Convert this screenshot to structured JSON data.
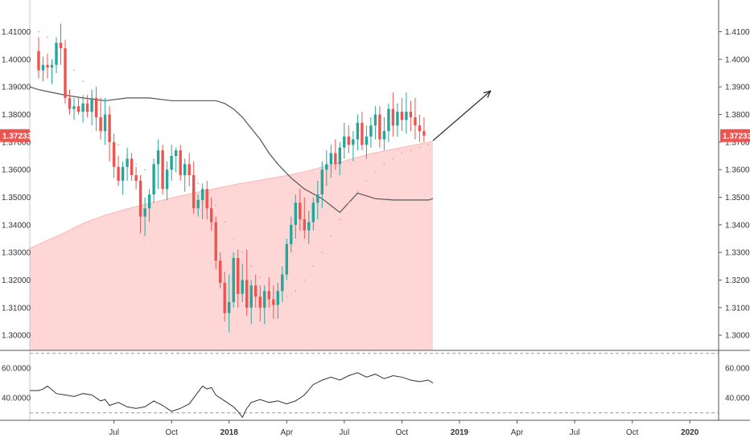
{
  "colors": {
    "up": "#26a69a",
    "down": "#ef5350",
    "fill": "#ffd6d6",
    "fill_edge": "#ffb3b3",
    "ma": "#555555",
    "psar": "#ef9a9a",
    "osc": "#333333",
    "grid_dash": "#999999",
    "axis": "#555555"
  },
  "chart_data": {
    "type": "candlestick",
    "price_axis": {
      "ticks": [
        1.3,
        1.31,
        1.32,
        1.33,
        1.34,
        1.35,
        1.36,
        1.37,
        1.38,
        1.39,
        1.4,
        1.41
      ],
      "tick_labels": [
        "1.30000",
        "1.31000",
        "1.32000",
        "1.33000",
        "1.34000",
        "1.35000",
        "1.36000",
        "1.37000",
        "1.38000",
        "1.39000",
        "1.40000",
        "1.41000"
      ],
      "range": [
        1.2945,
        1.4215
      ],
      "last_price": 1.37233,
      "last_price_label": "1.37233"
    },
    "time_axis": {
      "labels": [
        {
          "text": "Jul",
          "bold": false,
          "week": 17
        },
        {
          "text": "Oct",
          "bold": false,
          "week": 30
        },
        {
          "text": "2018",
          "bold": true,
          "week": 43
        },
        {
          "text": "Apr",
          "bold": false,
          "week": 56
        },
        {
          "text": "Jul",
          "bold": false,
          "week": 69
        },
        {
          "text": "Oct",
          "bold": false,
          "week": 82
        },
        {
          "text": "2019",
          "bold": true,
          "week": 95
        },
        {
          "text": "Apr",
          "bold": false,
          "week": 108
        },
        {
          "text": "Jul",
          "bold": false,
          "week": 121
        },
        {
          "text": "Oct",
          "bold": false,
          "week": 134
        },
        {
          "text": "2020",
          "bold": true,
          "week": 147
        }
      ],
      "week_range": [
        -2,
        153.5
      ]
    },
    "candles": [
      [
        1.403,
        1.408,
        1.393,
        1.396
      ],
      [
        1.396,
        1.401,
        1.392,
        1.398
      ],
      [
        1.398,
        1.402,
        1.393,
        1.397
      ],
      [
        1.397,
        1.4,
        1.391,
        1.398
      ],
      [
        1.398,
        1.408,
        1.395,
        1.406
      ],
      [
        1.406,
        1.413,
        1.398,
        1.404
      ],
      [
        1.404,
        1.407,
        1.384,
        1.386
      ],
      [
        1.386,
        1.389,
        1.38,
        1.382
      ],
      [
        1.382,
        1.386,
        1.378,
        1.383
      ],
      [
        1.383,
        1.386,
        1.38,
        1.381
      ],
      [
        1.381,
        1.387,
        1.377,
        1.384
      ],
      [
        1.384,
        1.387,
        1.379,
        1.381
      ],
      [
        1.381,
        1.389,
        1.376,
        1.386
      ],
      [
        1.386,
        1.39,
        1.374,
        1.379
      ],
      [
        1.379,
        1.386,
        1.371,
        1.374
      ],
      [
        1.374,
        1.386,
        1.369,
        1.38
      ],
      [
        1.38,
        1.383,
        1.363,
        1.37
      ],
      [
        1.37,
        1.373,
        1.357,
        1.361
      ],
      [
        1.361,
        1.365,
        1.354,
        1.356
      ],
      [
        1.356,
        1.363,
        1.351,
        1.361
      ],
      [
        1.361,
        1.368,
        1.356,
        1.364
      ],
      [
        1.364,
        1.366,
        1.356,
        1.358
      ],
      [
        1.358,
        1.361,
        1.353,
        1.356
      ],
      [
        1.356,
        1.358,
        1.337,
        1.343
      ],
      [
        1.343,
        1.35,
        1.336,
        1.346
      ],
      [
        1.346,
        1.353,
        1.341,
        1.351
      ],
      [
        1.351,
        1.364,
        1.348,
        1.362
      ],
      [
        1.362,
        1.371,
        1.353,
        1.367
      ],
      [
        1.367,
        1.369,
        1.351,
        1.353
      ],
      [
        1.353,
        1.363,
        1.349,
        1.36
      ],
      [
        1.36,
        1.369,
        1.356,
        1.365
      ],
      [
        1.365,
        1.368,
        1.359,
        1.367
      ],
      [
        1.367,
        1.369,
        1.356,
        1.358
      ],
      [
        1.358,
        1.364,
        1.352,
        1.362
      ],
      [
        1.362,
        1.366,
        1.354,
        1.358
      ],
      [
        1.358,
        1.363,
        1.344,
        1.346
      ],
      [
        1.346,
        1.351,
        1.343,
        1.349
      ],
      [
        1.349,
        1.355,
        1.342,
        1.353
      ],
      [
        1.353,
        1.356,
        1.342,
        1.346
      ],
      [
        1.346,
        1.35,
        1.338,
        1.341
      ],
      [
        1.341,
        1.343,
        1.324,
        1.327
      ],
      [
        1.327,
        1.33,
        1.317,
        1.319
      ],
      [
        1.319,
        1.323,
        1.305,
        1.308
      ],
      [
        1.308,
        1.322,
        1.301,
        1.312
      ],
      [
        1.312,
        1.33,
        1.31,
        1.328
      ],
      [
        1.328,
        1.331,
        1.31,
        1.315
      ],
      [
        1.315,
        1.326,
        1.312,
        1.32
      ],
      [
        1.32,
        1.331,
        1.307,
        1.31
      ],
      [
        1.31,
        1.32,
        1.304,
        1.318
      ],
      [
        1.318,
        1.322,
        1.31,
        1.314
      ],
      [
        1.314,
        1.318,
        1.305,
        1.31
      ],
      [
        1.31,
        1.318,
        1.304,
        1.316
      ],
      [
        1.316,
        1.321,
        1.31,
        1.313
      ],
      [
        1.313,
        1.318,
        1.306,
        1.311
      ],
      [
        1.311,
        1.319,
        1.306,
        1.316
      ],
      [
        1.316,
        1.325,
        1.312,
        1.322
      ],
      [
        1.322,
        1.335,
        1.32,
        1.333
      ],
      [
        1.333,
        1.343,
        1.33,
        1.34
      ],
      [
        1.34,
        1.351,
        1.335,
        1.348
      ],
      [
        1.348,
        1.353,
        1.338,
        1.342
      ],
      [
        1.342,
        1.35,
        1.335,
        1.338
      ],
      [
        1.338,
        1.345,
        1.333,
        1.341
      ],
      [
        1.341,
        1.35,
        1.338,
        1.348
      ],
      [
        1.348,
        1.356,
        1.342,
        1.351
      ],
      [
        1.351,
        1.363,
        1.346,
        1.36
      ],
      [
        1.36,
        1.367,
        1.354,
        1.362
      ],
      [
        1.362,
        1.369,
        1.357,
        1.366
      ],
      [
        1.366,
        1.371,
        1.36,
        1.362
      ],
      [
        1.362,
        1.37,
        1.358,
        1.368
      ],
      [
        1.368,
        1.377,
        1.364,
        1.372
      ],
      [
        1.372,
        1.376,
        1.366,
        1.369
      ],
      [
        1.369,
        1.374,
        1.363,
        1.371
      ],
      [
        1.371,
        1.38,
        1.367,
        1.377
      ],
      [
        1.377,
        1.381,
        1.367,
        1.369
      ],
      [
        1.369,
        1.376,
        1.364,
        1.372
      ],
      [
        1.372,
        1.379,
        1.368,
        1.376
      ],
      [
        1.376,
        1.383,
        1.371,
        1.38
      ],
      [
        1.38,
        1.383,
        1.368,
        1.371
      ],
      [
        1.371,
        1.379,
        1.367,
        1.374
      ],
      [
        1.374,
        1.384,
        1.37,
        1.382
      ],
      [
        1.382,
        1.388,
        1.372,
        1.376
      ],
      [
        1.376,
        1.384,
        1.372,
        1.381
      ],
      [
        1.381,
        1.386,
        1.374,
        1.378
      ],
      [
        1.378,
        1.388,
        1.373,
        1.381
      ],
      [
        1.381,
        1.385,
        1.374,
        1.379
      ],
      [
        1.379,
        1.386,
        1.371,
        1.376
      ],
      [
        1.376,
        1.38,
        1.37,
        1.374
      ],
      [
        1.374,
        1.379,
        1.37,
        1.37233
      ]
    ],
    "ma_line": {
      "weeks": [
        -2,
        0,
        3,
        6,
        10,
        15,
        20,
        25,
        30,
        35,
        38,
        40,
        42,
        44,
        46,
        48,
        50,
        52,
        54,
        57,
        60,
        64,
        68,
        72,
        76,
        80,
        84,
        88,
        89
      ],
      "values": [
        1.39,
        1.389,
        1.388,
        1.387,
        1.386,
        1.385,
        1.386,
        1.386,
        1.385,
        1.385,
        1.385,
        1.385,
        1.384,
        1.382,
        1.379,
        1.375,
        1.371,
        1.366,
        1.362,
        1.357,
        1.353,
        1.3495,
        1.3445,
        1.3515,
        1.3495,
        1.349,
        1.349,
        1.349,
        1.3495
      ]
    },
    "fill_curve": {
      "weeks": [
        -2,
        5,
        10,
        15,
        20,
        25,
        30,
        35,
        40,
        45,
        50,
        55,
        60,
        65,
        70,
        75,
        80,
        85,
        89
      ],
      "values": [
        1.3315,
        1.3365,
        1.3405,
        1.3435,
        1.3458,
        1.3478,
        1.3498,
        1.3515,
        1.3532,
        1.3548,
        1.3562,
        1.3576,
        1.3592,
        1.3614,
        1.3636,
        1.3658,
        1.3674,
        1.369,
        1.3702
      ]
    },
    "psar": {
      "weeks": [
        0,
        2,
        4,
        6,
        8,
        10,
        12,
        14,
        16,
        18,
        20,
        22,
        24,
        36,
        38,
        40,
        42,
        44,
        46,
        48,
        50,
        52,
        54,
        56,
        58,
        60,
        62,
        64,
        66,
        68,
        70,
        72,
        74,
        76,
        78,
        80,
        82,
        84,
        86,
        88
      ],
      "values": [
        1.41,
        1.408,
        1.405,
        1.4,
        1.396,
        1.392,
        1.387,
        1.382,
        1.375,
        1.369,
        1.365,
        1.362,
        1.36,
        1.355,
        1.352,
        1.347,
        1.341,
        1.335,
        1.33,
        1.325,
        1.321,
        1.318,
        1.316,
        1.314,
        1.316,
        1.32,
        1.325,
        1.33,
        1.336,
        1.342,
        1.348,
        1.352,
        1.356,
        1.359,
        1.362,
        1.364,
        1.366,
        1.367,
        1.368,
        1.369
      ]
    },
    "projection_arrow": {
      "from": {
        "week": 89,
        "value": 1.3705
      },
      "to": {
        "week": 102,
        "value": 1.3885
      }
    },
    "oscillator": {
      "tick_labels": [
        {
          "value": 40,
          "text": "40.0000"
        },
        {
          "value": 60,
          "text": "60.0000"
        }
      ],
      "range": [
        25,
        72
      ],
      "levels": [
        70,
        30
      ],
      "weeks": [
        -2,
        0,
        1,
        2,
        4,
        6,
        8,
        10,
        12,
        14,
        15,
        16,
        18,
        20,
        22,
        24,
        26,
        28,
        30,
        32,
        34,
        36,
        37,
        38,
        39,
        40,
        42,
        44,
        45,
        46,
        47,
        48,
        50,
        52,
        54,
        56,
        58,
        60,
        62,
        64,
        66,
        68,
        70,
        72,
        74,
        76,
        78,
        80,
        82,
        84,
        86,
        88,
        89
      ],
      "values": [
        45,
        45,
        46,
        48,
        43,
        42,
        41,
        43,
        42,
        38,
        39,
        35,
        37,
        34,
        33,
        34,
        38,
        35,
        31,
        33,
        36,
        44,
        48,
        46,
        47,
        42,
        38,
        34,
        31,
        27,
        33,
        37,
        39,
        37,
        38,
        36,
        38,
        42,
        49,
        52,
        54,
        52,
        55,
        57,
        54,
        56,
        53,
        55,
        54,
        52,
        51,
        52,
        50
      ]
    }
  }
}
